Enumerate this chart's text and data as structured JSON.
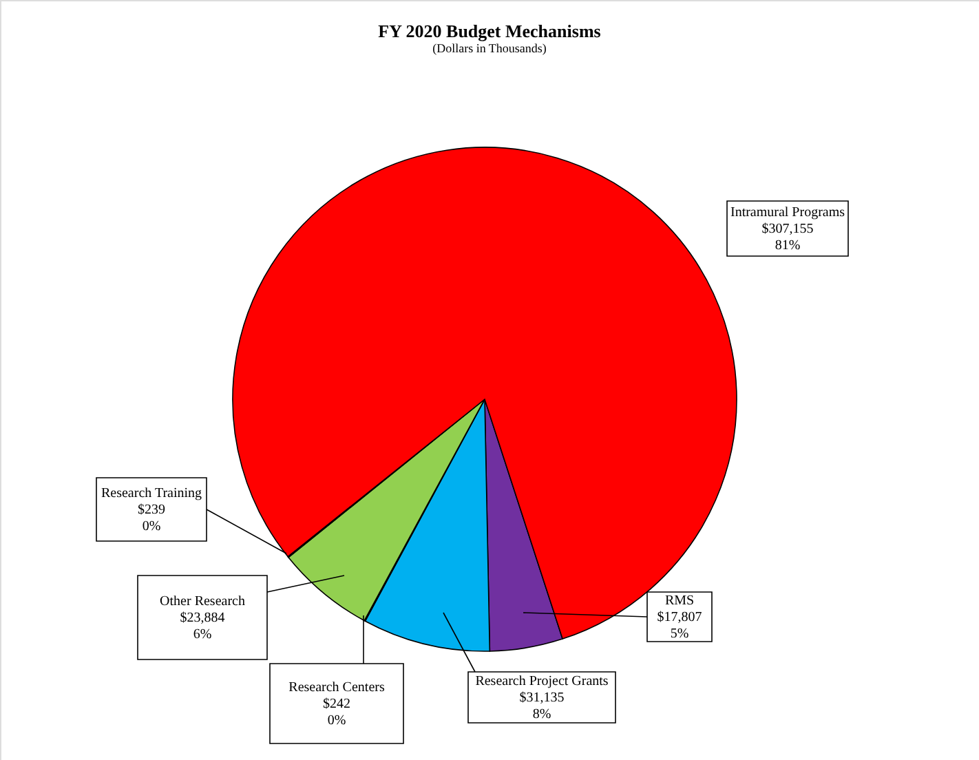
{
  "chart_data": {
    "type": "pie",
    "title": "FY  2020 Budget Mechanisms",
    "subtitle": "(Dollars in Thousands)",
    "categories": [
      "RMS",
      "Research Project Grants",
      "Research Centers",
      "Other Research",
      "Research Training",
      "Intramural Programs"
    ],
    "values": [
      17807,
      31135,
      242,
      23884,
      239,
      307155
    ],
    "colors": [
      "#7030a0",
      "#00b0f0",
      "#ffc000",
      "#92d050",
      "#4472c4",
      "#ff0000"
    ],
    "value_labels": [
      "$17,807\n5%",
      "$31,135\n8%",
      "$242\n0%",
      "$23,884\n6%",
      "$239\n0%",
      "$307,155\n81%"
    ]
  }
}
